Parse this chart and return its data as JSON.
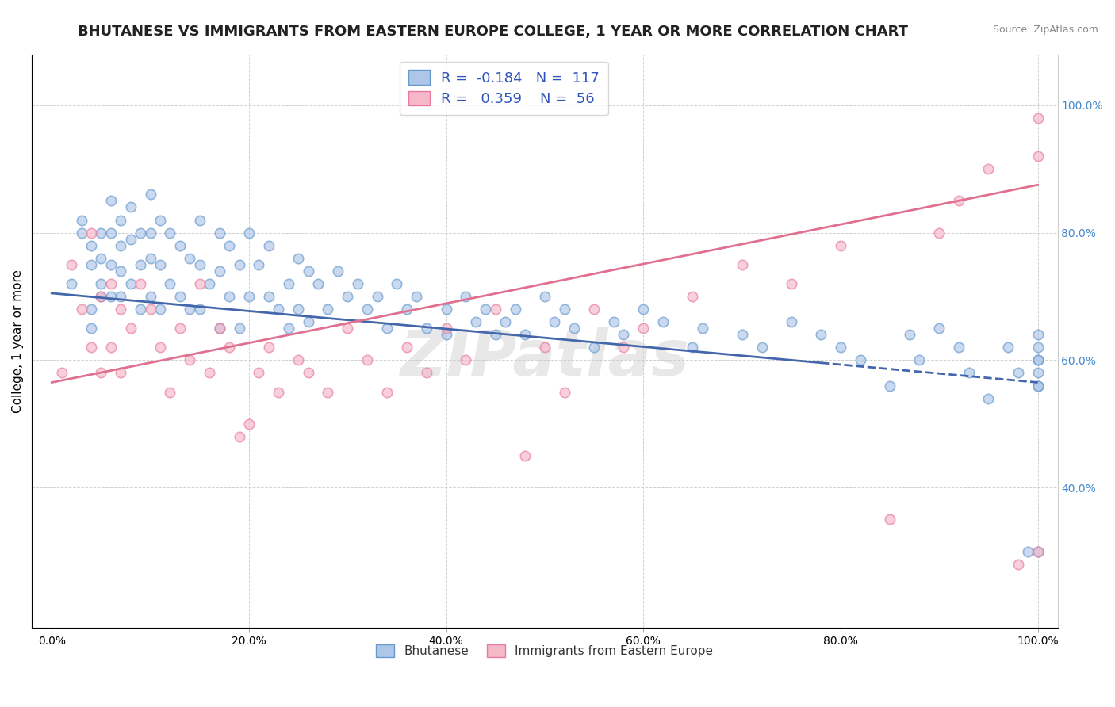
{
  "title": "BHUTANESE VS IMMIGRANTS FROM EASTERN EUROPE COLLEGE, 1 YEAR OR MORE CORRELATION CHART",
  "source_text": "Source: ZipAtlas.com",
  "xlabel": "",
  "ylabel": "College, 1 year or more",
  "xlim": [
    -0.02,
    1.02
  ],
  "ylim": [
    0.18,
    1.08
  ],
  "xtick_labels": [
    "0.0%",
    "20.0%",
    "40.0%",
    "60.0%",
    "80.0%",
    "100.0%"
  ],
  "xtick_vals": [
    0,
    0.2,
    0.4,
    0.6,
    0.8,
    1.0
  ],
  "ytick_labels_right": [
    "40.0%",
    "60.0%",
    "80.0%",
    "100.0%"
  ],
  "ytick_vals_right": [
    0.4,
    0.6,
    0.8,
    1.0
  ],
  "blue_face_color": "#aec6e8",
  "blue_edge_color": "#6699cc",
  "pink_face_color": "#f5b8c8",
  "pink_edge_color": "#e87aa0",
  "blue_line_color": "#4466aa",
  "pink_line_color": "#e07090",
  "watermark": "ZIPatlas",
  "legend_R_blue": "-0.184",
  "legend_N_blue": "117",
  "legend_R_pink": "0.359",
  "legend_N_pink": "56",
  "legend_label_blue": "Bhutanese",
  "legend_label_pink": "Immigrants from Eastern Europe",
  "blue_scatter_x": [
    0.02,
    0.03,
    0.03,
    0.04,
    0.04,
    0.04,
    0.04,
    0.05,
    0.05,
    0.05,
    0.05,
    0.06,
    0.06,
    0.06,
    0.06,
    0.07,
    0.07,
    0.07,
    0.07,
    0.08,
    0.08,
    0.08,
    0.09,
    0.09,
    0.09,
    0.1,
    0.1,
    0.1,
    0.1,
    0.11,
    0.11,
    0.11,
    0.12,
    0.12,
    0.13,
    0.13,
    0.14,
    0.14,
    0.15,
    0.15,
    0.15,
    0.16,
    0.17,
    0.17,
    0.17,
    0.18,
    0.18,
    0.19,
    0.19,
    0.2,
    0.2,
    0.21,
    0.22,
    0.22,
    0.23,
    0.24,
    0.24,
    0.25,
    0.25,
    0.26,
    0.26,
    0.27,
    0.28,
    0.29,
    0.3,
    0.31,
    0.32,
    0.33,
    0.34,
    0.35,
    0.36,
    0.37,
    0.38,
    0.4,
    0.4,
    0.42,
    0.43,
    0.44,
    0.45,
    0.46,
    0.47,
    0.48,
    0.5,
    0.51,
    0.52,
    0.53,
    0.55,
    0.57,
    0.58,
    0.6,
    0.62,
    0.65,
    0.66,
    0.7,
    0.72,
    0.75,
    0.78,
    0.8,
    0.82,
    0.85,
    0.87,
    0.88,
    0.9,
    0.92,
    0.93,
    0.95,
    0.97,
    0.98,
    0.99,
    1.0,
    1.0,
    1.0,
    1.0,
    1.0,
    1.0,
    1.0,
    1.0
  ],
  "blue_scatter_y": [
    0.72,
    0.8,
    0.82,
    0.75,
    0.78,
    0.68,
    0.65,
    0.8,
    0.76,
    0.72,
    0.7,
    0.85,
    0.8,
    0.75,
    0.7,
    0.82,
    0.78,
    0.74,
    0.7,
    0.84,
    0.79,
    0.72,
    0.8,
    0.75,
    0.68,
    0.86,
    0.8,
    0.76,
    0.7,
    0.82,
    0.75,
    0.68,
    0.8,
    0.72,
    0.78,
    0.7,
    0.76,
    0.68,
    0.82,
    0.75,
    0.68,
    0.72,
    0.8,
    0.74,
    0.65,
    0.78,
    0.7,
    0.75,
    0.65,
    0.8,
    0.7,
    0.75,
    0.78,
    0.7,
    0.68,
    0.72,
    0.65,
    0.76,
    0.68,
    0.74,
    0.66,
    0.72,
    0.68,
    0.74,
    0.7,
    0.72,
    0.68,
    0.7,
    0.65,
    0.72,
    0.68,
    0.7,
    0.65,
    0.68,
    0.64,
    0.7,
    0.66,
    0.68,
    0.64,
    0.66,
    0.68,
    0.64,
    0.7,
    0.66,
    0.68,
    0.65,
    0.62,
    0.66,
    0.64,
    0.68,
    0.66,
    0.62,
    0.65,
    0.64,
    0.62,
    0.66,
    0.64,
    0.62,
    0.6,
    0.56,
    0.64,
    0.6,
    0.65,
    0.62,
    0.58,
    0.54,
    0.62,
    0.58,
    0.3,
    0.56,
    0.6,
    0.62,
    0.64,
    0.3,
    0.56,
    0.58,
    0.6
  ],
  "pink_scatter_x": [
    0.01,
    0.02,
    0.03,
    0.04,
    0.04,
    0.05,
    0.05,
    0.06,
    0.06,
    0.07,
    0.07,
    0.08,
    0.09,
    0.1,
    0.11,
    0.12,
    0.13,
    0.14,
    0.15,
    0.16,
    0.17,
    0.18,
    0.19,
    0.2,
    0.21,
    0.22,
    0.23,
    0.25,
    0.26,
    0.28,
    0.3,
    0.32,
    0.34,
    0.36,
    0.38,
    0.4,
    0.42,
    0.45,
    0.48,
    0.5,
    0.52,
    0.55,
    0.58,
    0.6,
    0.65,
    0.7,
    0.75,
    0.8,
    0.85,
    0.9,
    0.92,
    0.95,
    0.98,
    1.0,
    1.0,
    1.0
  ],
  "pink_scatter_y": [
    0.58,
    0.75,
    0.68,
    0.8,
    0.62,
    0.7,
    0.58,
    0.72,
    0.62,
    0.68,
    0.58,
    0.65,
    0.72,
    0.68,
    0.62,
    0.55,
    0.65,
    0.6,
    0.72,
    0.58,
    0.65,
    0.62,
    0.48,
    0.5,
    0.58,
    0.62,
    0.55,
    0.6,
    0.58,
    0.55,
    0.65,
    0.6,
    0.55,
    0.62,
    0.58,
    0.65,
    0.6,
    0.68,
    0.45,
    0.62,
    0.55,
    0.68,
    0.62,
    0.65,
    0.7,
    0.75,
    0.72,
    0.78,
    0.35,
    0.8,
    0.85,
    0.9,
    0.28,
    0.3,
    0.92,
    0.98
  ],
  "blue_line_x_start": 0.0,
  "blue_line_x_end": 1.0,
  "blue_line_y_start": 0.705,
  "blue_line_y_end": 0.565,
  "blue_line_solid_end": 0.78,
  "pink_line_x_start": 0.0,
  "pink_line_x_end": 1.0,
  "pink_line_y_start": 0.565,
  "pink_line_y_end": 0.875,
  "grid_color": "#cccccc",
  "marker_size": 80,
  "alpha_scatter": 0.65,
  "title_fontsize": 13,
  "axis_label_fontsize": 11,
  "tick_fontsize": 10
}
